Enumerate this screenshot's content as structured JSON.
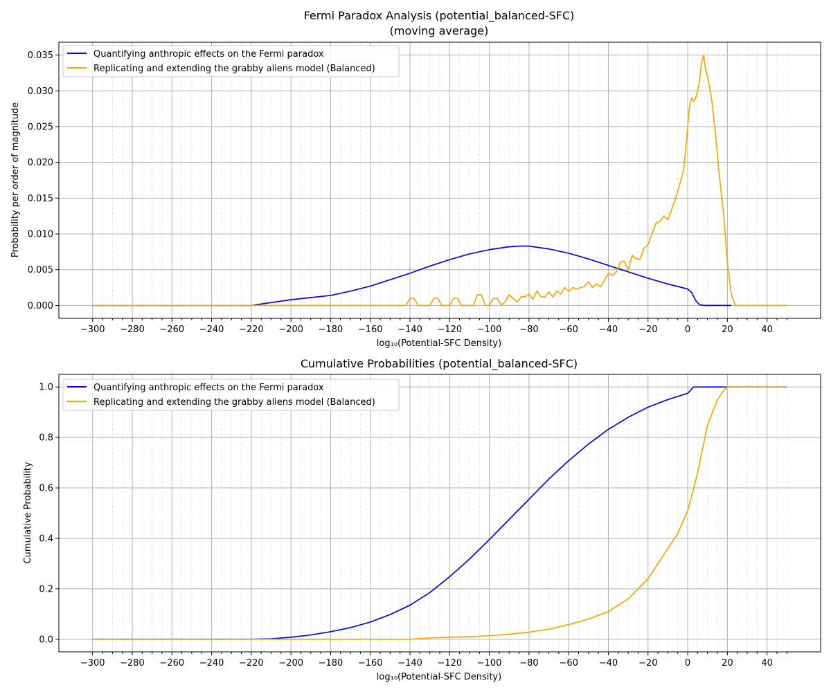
{
  "chart_data": [
    {
      "type": "line",
      "title": "Fermi Paradox Analysis (potential_balanced-SFC)",
      "subtitle": "(moving average)",
      "xlabel": "log₁₀(Potential-SFC Density)",
      "ylabel": "Probability per order of magnitude",
      "xlim": [
        -317,
        67
      ],
      "ylim": [
        -0.0018,
        0.0368
      ],
      "xticks": [
        -300,
        -280,
        -260,
        -240,
        -220,
        -200,
        -180,
        -160,
        -140,
        -120,
        -100,
        -80,
        -60,
        -40,
        -20,
        0,
        20,
        40
      ],
      "xtick_labels": [
        "−300",
        "−280",
        "−260",
        "−240",
        "−220",
        "−200",
        "−180",
        "−160",
        "−140",
        "−120",
        "−100",
        "−80",
        "−60",
        "−40",
        "−20",
        "0",
        "20",
        "40"
      ],
      "yticks": [
        0,
        0.005,
        0.01,
        0.015,
        0.02,
        0.025,
        0.03,
        0.035
      ],
      "ytick_labels": [
        "0.000",
        "0.005",
        "0.010",
        "0.015",
        "0.020",
        "0.025",
        "0.030",
        "0.035"
      ],
      "grid": true,
      "legend_position": "top-left",
      "series": [
        {
          "name": "Quantifying anthropic effects on the Fermi paradox",
          "color": "#0000ff",
          "x": [
            -300,
            -240,
            -220,
            -210,
            -200,
            -190,
            -180,
            -170,
            -160,
            -150,
            -140,
            -130,
            -120,
            -110,
            -100,
            -90,
            -85,
            -80,
            -70,
            -60,
            -50,
            -40,
            -30,
            -20,
            -10,
            0,
            2,
            4,
            6,
            8,
            10,
            20,
            22
          ],
          "y": [
            0,
            0,
            0,
            0.0004,
            0.0008,
            0.0011,
            0.0014,
            0.002,
            0.0027,
            0.0036,
            0.0045,
            0.0055,
            0.0064,
            0.0072,
            0.0078,
            0.0082,
            0.0083,
            0.0083,
            0.0079,
            0.0073,
            0.0065,
            0.0056,
            0.0047,
            0.0038,
            0.003,
            0.0023,
            0.0018,
            0.0007,
            0.0001,
            0,
            0,
            0,
            0
          ]
        },
        {
          "name": "Replicating and extending the grabby aliens model (Balanced)",
          "color": "#ffa500",
          "x": [
            -300,
            -142,
            -140,
            -138,
            -136,
            -130,
            -128,
            -126,
            -124,
            -120,
            -118,
            -116,
            -114,
            -108,
            -106,
            -104,
            -102,
            -100,
            -98,
            -96,
            -94,
            -92,
            -90,
            -88,
            -86,
            -84,
            -82,
            -80,
            -78,
            -76,
            -74,
            -72,
            -70,
            -68,
            -66,
            -64,
            -62,
            -60,
            -58,
            -56,
            -54,
            -52,
            -50,
            -48,
            -46,
            -44,
            -42,
            -40,
            -38,
            -36,
            -34,
            -32,
            -30,
            -28,
            -26,
            -24,
            -22,
            -20,
            -18,
            -16,
            -14,
            -12,
            -10,
            -8,
            -6,
            -4,
            -2,
            0,
            1,
            2,
            3,
            4,
            5,
            6,
            7,
            8,
            9,
            10,
            12,
            14,
            16,
            18,
            20,
            22,
            24,
            50
          ],
          "y": [
            0,
            0,
            0.001,
            0.001,
            0,
            0,
            0.001,
            0.001,
            0,
            0,
            0.001,
            0.001,
            0,
            0,
            0.0015,
            0.0015,
            0,
            0,
            0.001,
            0.001,
            0,
            0.0005,
            0.0015,
            0.001,
            0.0005,
            0.0012,
            0.0012,
            0.0016,
            0.0009,
            0.002,
            0.0012,
            0.0012,
            0.0019,
            0.0012,
            0.002,
            0.0016,
            0.0025,
            0.002,
            0.0025,
            0.0023,
            0.0025,
            0.0027,
            0.0033,
            0.0025,
            0.003,
            0.0026,
            0.0035,
            0.0045,
            0.0042,
            0.0047,
            0.006,
            0.0062,
            0.005,
            0.007,
            0.0065,
            0.0065,
            0.008,
            0.0085,
            0.01,
            0.0115,
            0.0118,
            0.0125,
            0.012,
            0.0135,
            0.015,
            0.017,
            0.019,
            0.025,
            0.028,
            0.029,
            0.0285,
            0.029,
            0.03,
            0.0315,
            0.034,
            0.035,
            0.033,
            0.032,
            0.029,
            0.024,
            0.018,
            0.013,
            0.006,
            0.0015,
            0,
            0
          ]
        }
      ]
    },
    {
      "type": "line",
      "title": "Cumulative Probabilities (potential_balanced-SFC)",
      "xlabel": "log₁₀(Potential-SFC Density)",
      "ylabel": "Cumulative Probability",
      "xlim": [
        -317,
        67
      ],
      "ylim": [
        -0.05,
        1.05
      ],
      "xticks": [
        -300,
        -280,
        -260,
        -240,
        -220,
        -200,
        -180,
        -160,
        -140,
        -120,
        -100,
        -80,
        -60,
        -40,
        -20,
        0,
        20,
        40
      ],
      "xtick_labels": [
        "−300",
        "−280",
        "−260",
        "−240",
        "−220",
        "−200",
        "−180",
        "−160",
        "−140",
        "−120",
        "−100",
        "−80",
        "−60",
        "−40",
        "−20",
        "0",
        "20",
        "40"
      ],
      "yticks": [
        0,
        0.2,
        0.4,
        0.6,
        0.8,
        1.0
      ],
      "ytick_labels": [
        "0.0",
        "0.2",
        "0.4",
        "0.6",
        "0.8",
        "1.0"
      ],
      "grid": true,
      "legend_position": "top-left",
      "series": [
        {
          "name": "Quantifying anthropic effects on the Fermi paradox",
          "color": "#0000ff",
          "x": [
            -300,
            -220,
            -210,
            -200,
            -190,
            -180,
            -170,
            -160,
            -150,
            -140,
            -130,
            -120,
            -110,
            -100,
            -90,
            -80,
            -70,
            -60,
            -50,
            -40,
            -30,
            -20,
            -10,
            0,
            3,
            50
          ],
          "y": [
            0,
            0,
            0.002,
            0.008,
            0.017,
            0.03,
            0.046,
            0.068,
            0.098,
            0.135,
            0.185,
            0.248,
            0.318,
            0.395,
            0.475,
            0.555,
            0.635,
            0.708,
            0.774,
            0.832,
            0.88,
            0.92,
            0.95,
            0.975,
            1.0,
            1.0
          ]
        },
        {
          "name": "Replicating and extending the grabby aliens model (Balanced)",
          "color": "#ffa500",
          "x": [
            -300,
            -140,
            -130,
            -120,
            -110,
            -100,
            -90,
            -80,
            -70,
            -60,
            -50,
            -40,
            -30,
            -20,
            -15,
            -10,
            -5,
            0,
            5,
            10,
            15,
            18,
            20,
            50
          ],
          "y": [
            0,
            0,
            0.005,
            0.008,
            0.01,
            0.014,
            0.02,
            0.028,
            0.04,
            0.058,
            0.08,
            0.11,
            0.16,
            0.24,
            0.3,
            0.36,
            0.42,
            0.51,
            0.66,
            0.85,
            0.95,
            0.985,
            1.0,
            1.0
          ]
        }
      ]
    }
  ]
}
